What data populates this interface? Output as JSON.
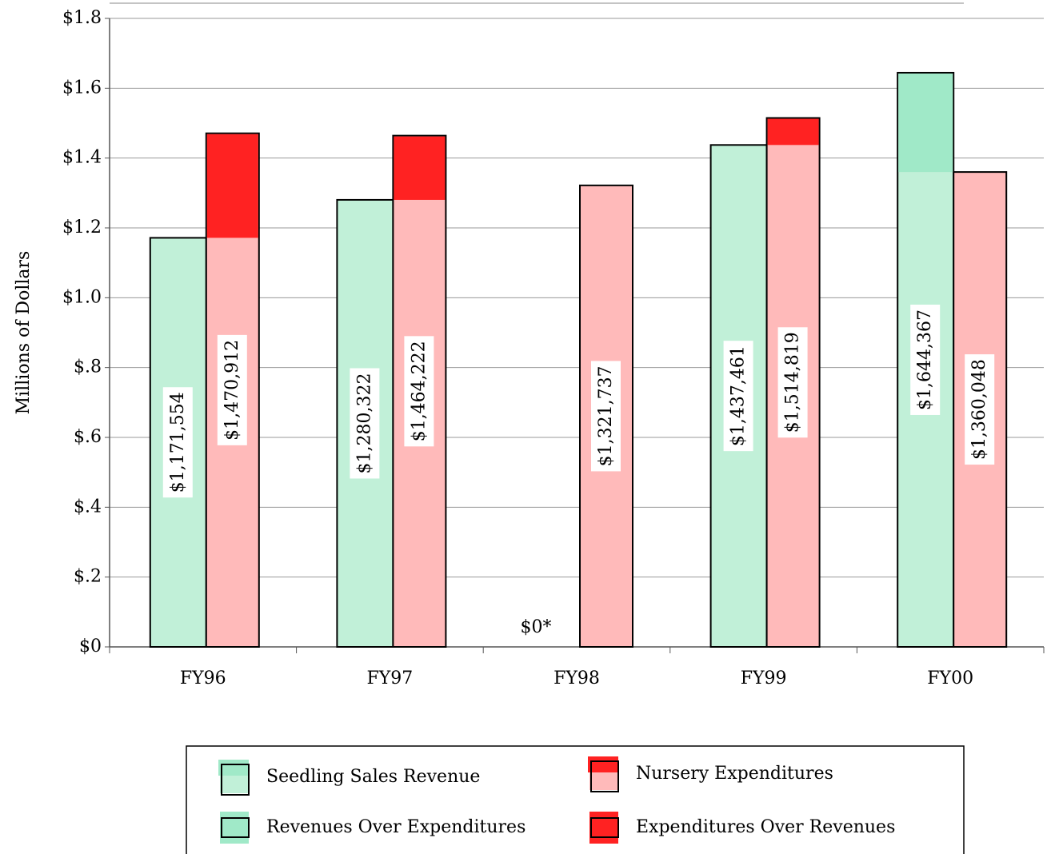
{
  "chart_data": {
    "type": "bar",
    "y_label": "Millions of Dollars",
    "categories": [
      "FY96",
      "FY97",
      "FY98",
      "FY99",
      "FY00"
    ],
    "series": [
      {
        "name": "Seedling Sales Revenue",
        "color": "#c1f0d8",
        "values": [
          1.171554,
          1.280322,
          0,
          1.437461,
          1.644367
        ],
        "value_labels": [
          "$1,171,554",
          "$1,280,322",
          "$0*",
          "$1,437,461",
          "$1,644,367"
        ]
      },
      {
        "name": "Nursery Expenditures",
        "color": "#ffbaba",
        "values": [
          1.470912,
          1.464222,
          1.321737,
          1.514819,
          1.360048
        ],
        "value_labels": [
          "$1,470,912",
          "$1,464,222",
          "$1,321,737",
          "$1,514,819",
          "$1,360,048"
        ]
      }
    ],
    "highlights": [
      {
        "name": "Revenues Over Expenditures",
        "color": "#a0e9c8"
      },
      {
        "name": "Expenditures Over Revenues",
        "color": "#ff2222"
      }
    ],
    "ylim": [
      0,
      1.8
    ],
    "yticks": [
      {
        "value": 0,
        "label": "$0"
      },
      {
        "value": 0.2,
        "label": "$.2"
      },
      {
        "value": 0.4,
        "label": "$.4"
      },
      {
        "value": 0.6,
        "label": "$.6"
      },
      {
        "value": 0.8,
        "label": "$.8"
      },
      {
        "value": 1.0,
        "label": "$1.0"
      },
      {
        "value": 1.2,
        "label": "$1.2"
      },
      {
        "value": 1.4,
        "label": "$1.4"
      },
      {
        "value": 1.6,
        "label": "$1.6"
      },
      {
        "value": 1.8,
        "label": "$1.8"
      }
    ],
    "grid": true
  }
}
